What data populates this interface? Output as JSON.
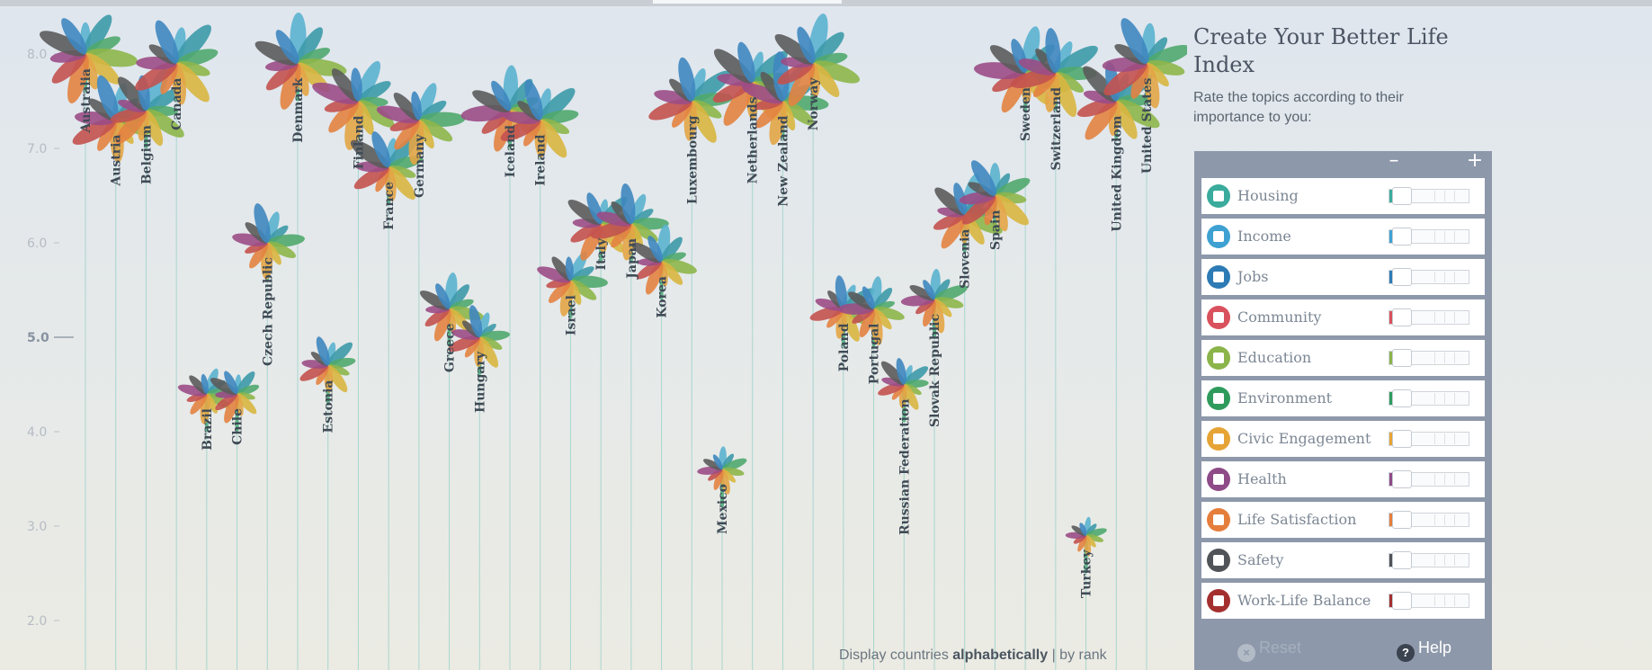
{
  "chart_data": {
    "type": "flower-scatter",
    "title": "",
    "xlabel": "",
    "ylabel": "",
    "ylim": [
      1.5,
      8.6
    ],
    "y_ticks": [
      {
        "value": 2,
        "label": "2.0"
      },
      {
        "value": 3,
        "label": "3.0"
      },
      {
        "value": 4,
        "label": "4.0"
      },
      {
        "value": 5,
        "label": "5.0",
        "major": true
      },
      {
        "value": 6,
        "label": "6.0"
      },
      {
        "value": 7,
        "label": "7.0"
      },
      {
        "value": 8,
        "label": "8.0"
      }
    ],
    "petal_colors": [
      "#5bb2cf",
      "#3d9aa8",
      "#50a86e",
      "#8db64a",
      "#d8b640",
      "#e3a546",
      "#e38341",
      "#c3524f",
      "#9b4d86",
      "#5b5b5b",
      "#3f87c0"
    ],
    "countries": [
      {
        "name": "Australia",
        "value": 8.0
      },
      {
        "name": "Austria",
        "value": 7.3
      },
      {
        "name": "Belgium",
        "value": 7.4
      },
      {
        "name": "Canada",
        "value": 7.9
      },
      {
        "name": "Brazil",
        "value": 4.4
      },
      {
        "name": "Chile",
        "value": 4.4
      },
      {
        "name": "Czech Republic",
        "value": 6.0
      },
      {
        "name": "Denmark",
        "value": 7.9
      },
      {
        "name": "Estonia",
        "value": 4.7
      },
      {
        "name": "Finland",
        "value": 7.5
      },
      {
        "name": "France",
        "value": 6.8
      },
      {
        "name": "Germany",
        "value": 7.3
      },
      {
        "name": "Greece",
        "value": 5.3
      },
      {
        "name": "Hungary",
        "value": 5.0
      },
      {
        "name": "Iceland",
        "value": 7.4
      },
      {
        "name": "Ireland",
        "value": 7.3
      },
      {
        "name": "Israel",
        "value": 5.6
      },
      {
        "name": "Italy",
        "value": 6.2
      },
      {
        "name": "Japan",
        "value": 6.2
      },
      {
        "name": "Korea",
        "value": 5.8
      },
      {
        "name": "Luxembourg",
        "value": 7.5
      },
      {
        "name": "Mexico",
        "value": 3.6
      },
      {
        "name": "Netherlands",
        "value": 7.7
      },
      {
        "name": "New Zealand",
        "value": 7.5
      },
      {
        "name": "Norway",
        "value": 7.9
      },
      {
        "name": "Poland",
        "value": 5.3
      },
      {
        "name": "Portugal",
        "value": 5.3
      },
      {
        "name": "Russian Federation",
        "value": 4.5
      },
      {
        "name": "Slovak Republic",
        "value": 5.4
      },
      {
        "name": "Slovenia",
        "value": 6.3
      },
      {
        "name": "Spain",
        "value": 6.5
      },
      {
        "name": "Sweden",
        "value": 7.8
      },
      {
        "name": "Switzerland",
        "value": 7.8
      },
      {
        "name": "Turkey",
        "value": 2.9
      },
      {
        "name": "United Kingdom",
        "value": 7.5
      },
      {
        "name": "United States",
        "value": 7.9
      }
    ]
  },
  "sort": {
    "prefix": "Display countries",
    "alphabetical": "alphabetically",
    "separator": "|",
    "by_rank": "by rank"
  },
  "panel": {
    "title": "Create Your Better Life Index",
    "subtitle": "Rate the topics according to their importance to you:",
    "minus": "–",
    "plus": "+",
    "topics": [
      {
        "label": "Housing",
        "icon": "house-icon",
        "color": "#3aab9c"
      },
      {
        "label": "Income",
        "icon": "money-icon",
        "color": "#3ea1d2"
      },
      {
        "label": "Jobs",
        "icon": "briefcase-icon",
        "color": "#2d7bb5"
      },
      {
        "label": "Community",
        "icon": "people-icon",
        "color": "#d9515c"
      },
      {
        "label": "Education",
        "icon": "book-icon",
        "color": "#8bb44a"
      },
      {
        "label": "Environment",
        "icon": "tree-icon",
        "color": "#2e9b5d"
      },
      {
        "label": "Civic Engagement",
        "icon": "ballot-icon",
        "color": "#e6a436"
      },
      {
        "label": "Health",
        "icon": "cross-icon",
        "color": "#8e4b88"
      },
      {
        "label": "Life Satisfaction",
        "icon": "heart-icon",
        "color": "#e57d3b"
      },
      {
        "label": "Safety",
        "icon": "runner-icon",
        "color": "#505357"
      },
      {
        "label": "Work-Life Balance",
        "icon": "scales-icon",
        "color": "#a3302f"
      }
    ],
    "reset_label": "Reset",
    "help_label": "Help",
    "help_glyph": "?"
  }
}
